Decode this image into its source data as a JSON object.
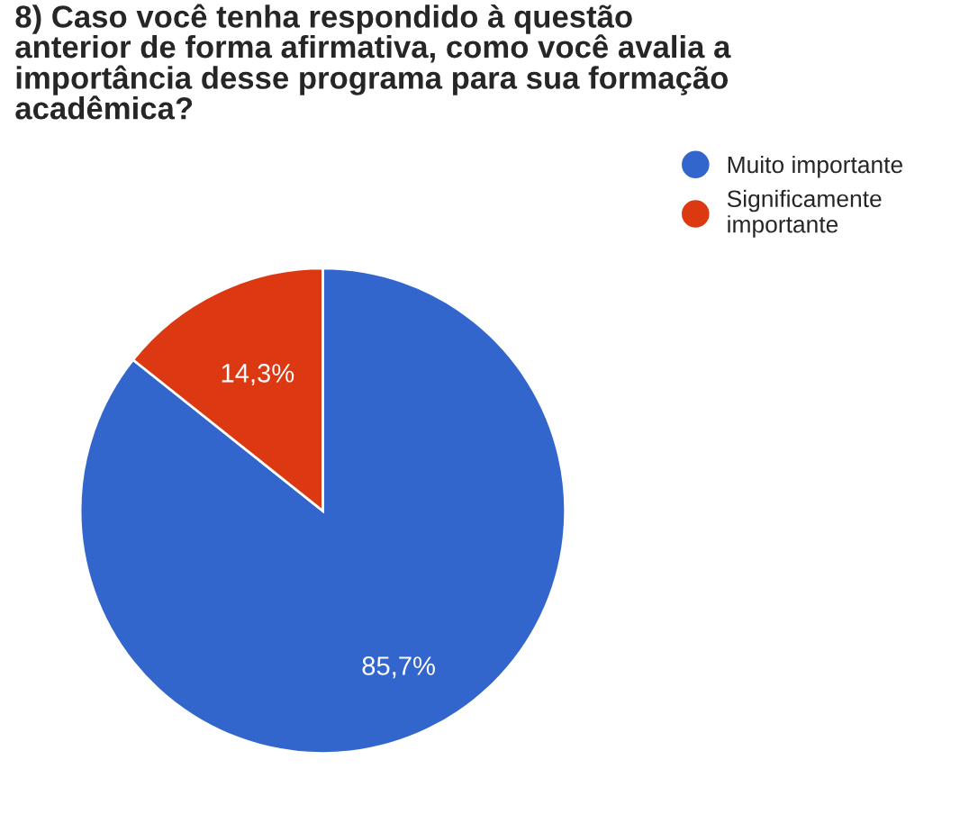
{
  "chart_data": {
    "type": "pie",
    "title": "8) Caso você tenha respondido à questão\nanterior de forma afirmativa, como você avalia a\nimportância desse programa para sua formação\nacadêmica?",
    "categories": [
      "Muito importante",
      "Significamente\nimportante"
    ],
    "values": [
      85.7,
      14.3
    ],
    "colors": [
      "#3366cc",
      "#dc3912"
    ],
    "value_labels": [
      "85,7%",
      "14,3%"
    ],
    "legend": "top right"
  }
}
